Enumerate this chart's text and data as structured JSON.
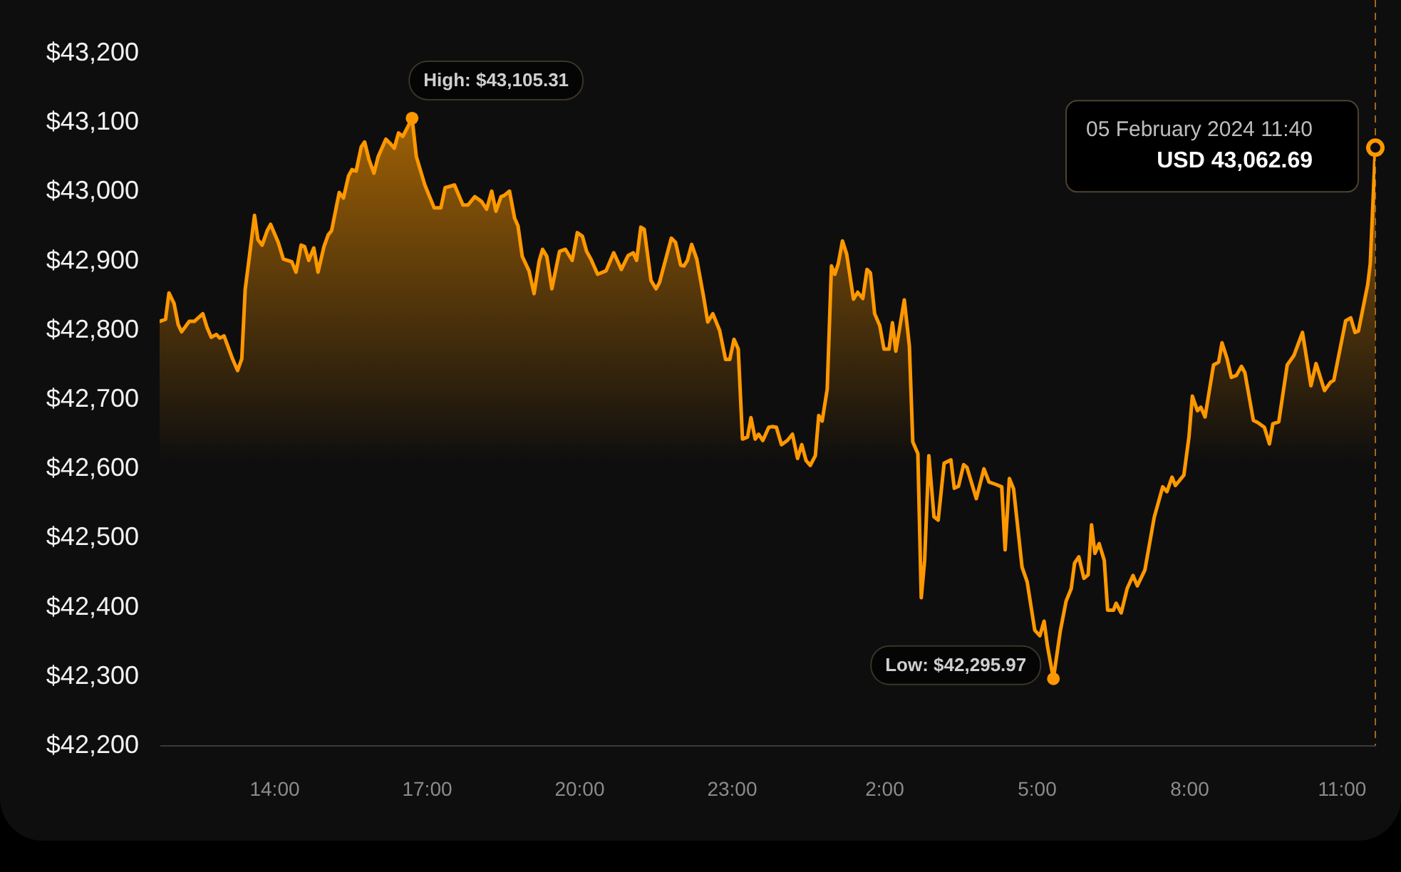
{
  "chart_data": {
    "type": "area",
    "x": [
      "2024-02-04T11:45",
      "2024-02-04T11:52",
      "2024-02-04T11:56",
      "2024-02-04T12:02",
      "2024-02-04T12:07",
      "2024-02-04T12:11",
      "2024-02-04T12:20",
      "2024-02-04T12:26",
      "2024-02-04T12:36",
      "2024-02-04T12:41",
      "2024-02-04T12:46",
      "2024-02-04T12:52",
      "2024-02-04T12:56",
      "2024-02-04T13:01",
      "2024-02-04T13:11",
      "2024-02-04T13:17",
      "2024-02-04T13:22",
      "2024-02-04T13:26",
      "2024-02-04T13:31",
      "2024-02-04T13:37",
      "2024-02-04T13:41",
      "2024-02-04T13:46",
      "2024-02-04T13:52",
      "2024-02-04T13:56",
      "2024-02-04T14:05",
      "2024-02-04T14:11",
      "2024-02-04T14:21",
      "2024-02-04T14:26",
      "2024-02-04T14:32",
      "2024-02-04T14:36",
      "2024-02-04T14:41",
      "2024-02-04T14:47",
      "2024-02-04T14:52",
      "2024-02-04T14:59",
      "2024-02-04T15:04",
      "2024-02-04T15:08",
      "2024-02-04T15:17",
      "2024-02-04T15:22",
      "2024-02-04T15:28",
      "2024-02-04T15:32",
      "2024-02-04T15:37",
      "2024-02-04T15:43",
      "2024-02-04T15:47",
      "2024-02-04T15:52",
      "2024-02-04T15:58",
      "2024-02-04T16:03",
      "2024-02-04T16:12",
      "2024-02-04T16:17",
      "2024-02-04T16:22",
      "2024-02-04T16:27",
      "2024-02-04T16:32",
      "2024-02-04T16:38",
      "2024-02-04T16:43",
      "2024-02-04T16:48",
      "2024-02-04T16:58",
      "2024-02-04T17:09",
      "2024-02-04T17:17",
      "2024-02-04T17:22",
      "2024-02-04T17:28",
      "2024-02-04T17:33",
      "2024-02-04T17:43",
      "2024-02-04T17:49",
      "2024-02-04T17:57",
      "2024-02-04T18:05",
      "2024-02-04T18:11",
      "2024-02-04T18:17",
      "2024-02-04T18:22",
      "2024-02-04T18:28",
      "2024-02-04T18:32",
      "2024-02-04T18:38",
      "2024-02-04T18:44",
      "2024-02-04T18:48",
      "2024-02-04T18:53",
      "2024-02-04T19:01",
      "2024-02-04T19:07",
      "2024-02-04T19:13",
      "2024-02-04T19:17",
      "2024-02-04T19:22",
      "2024-02-04T19:28",
      "2024-02-04T19:37",
      "2024-02-04T19:44",
      "2024-02-04T19:52",
      "2024-02-04T19:58",
      "2024-02-04T20:04",
      "2024-02-04T20:09",
      "2024-02-04T20:14",
      "2024-02-04T20:22",
      "2024-02-04T20:32",
      "2024-02-04T20:41",
      "2024-02-04T20:50",
      "2024-02-04T20:58",
      "2024-02-04T21:04",
      "2024-02-04T21:08",
      "2024-02-04T21:13",
      "2024-02-04T21:17",
      "2024-02-04T21:25",
      "2024-02-04T21:31",
      "2024-02-04T21:35",
      "2024-02-04T21:49",
      "2024-02-04T21:54",
      "2024-02-04T22:00",
      "2024-02-04T22:04",
      "2024-02-04T22:08",
      "2024-02-04T22:13",
      "2024-02-04T22:19",
      "2024-02-04T22:27",
      "2024-02-04T22:32",
      "2024-02-04T22:38",
      "2024-02-04T22:46",
      "2024-02-04T22:53",
      "2024-02-04T22:58",
      "2024-02-04T23:03",
      "2024-02-04T23:08",
      "2024-02-04T23:13",
      "2024-02-04T23:19",
      "2024-02-04T23:23",
      "2024-02-04T23:28",
      "2024-02-04T23:32",
      "2024-02-04T23:37",
      "2024-02-04T23:44",
      "2024-02-04T23:48",
      "2024-02-04T23:53",
      "2024-02-04T23:59",
      "2024-02-05T00:06",
      "2024-02-05T00:12",
      "2024-02-05T00:18",
      "2024-02-05T00:23",
      "2024-02-05T00:28",
      "2024-02-05T00:33",
      "2024-02-05T00:39",
      "2024-02-05T00:43",
      "2024-02-05T00:47",
      "2024-02-05T00:53",
      "2024-02-05T00:58",
      "2024-02-05T01:02",
      "2024-02-05T01:06",
      "2024-02-05T01:11",
      "2024-02-05T01:16",
      "2024-02-05T01:24",
      "2024-02-05T01:29",
      "2024-02-05T01:35",
      "2024-02-05T01:40",
      "2024-02-05T01:44",
      "2024-02-05T01:49",
      "2024-02-05T01:55",
      "2024-02-05T02:00",
      "2024-02-05T02:06",
      "2024-02-05T02:10",
      "2024-02-05T02:14",
      "2024-02-05T02:24",
      "2024-02-05T02:30",
      "2024-02-05T02:34",
      "2024-02-05T02:40",
      "2024-02-05T02:44",
      "2024-02-05T02:48",
      "2024-02-05T02:53",
      "2024-02-05T02:59",
      "2024-02-05T03:04",
      "2024-02-05T03:11",
      "2024-02-05T03:19",
      "2024-02-05T03:23",
      "2024-02-05T03:28",
      "2024-02-05T03:34",
      "2024-02-05T03:38",
      "2024-02-05T03:49",
      "2024-02-05T03:58",
      "2024-02-05T04:04",
      "2024-02-05T04:11",
      "2024-02-05T04:19",
      "2024-02-05T04:23",
      "2024-02-05T04:28",
      "2024-02-05T04:33",
      "2024-02-05T04:43",
      "2024-02-05T04:49",
      "2024-02-05T04:58",
      "2024-02-05T05:04",
      "2024-02-05T05:09",
      "2024-02-05T05:13",
      "2024-02-05T05:20",
      "2024-02-05T05:28",
      "2024-02-05T05:35",
      "2024-02-05T05:41",
      "2024-02-05T05:45",
      "2024-02-05T05:50",
      "2024-02-05T05:56",
      "2024-02-05T06:01",
      "2024-02-05T06:05",
      "2024-02-05T06:09",
      "2024-02-05T06:14",
      "2024-02-05T06:20",
      "2024-02-05T06:24",
      "2024-02-05T06:31",
      "2024-02-05T06:34",
      "2024-02-05T06:40",
      "2024-02-05T06:47",
      "2024-02-05T06:54",
      "2024-02-05T06:59",
      "2024-02-05T07:08",
      "2024-02-05T07:19",
      "2024-02-05T07:29",
      "2024-02-05T07:34",
      "2024-02-05T07:40",
      "2024-02-05T07:44",
      "2024-02-05T07:54",
      "2024-02-05T08:00",
      "2024-02-05T08:04",
      "2024-02-05T08:10",
      "2024-02-05T08:14",
      "2024-02-05T08:19",
      "2024-02-05T08:29",
      "2024-02-05T08:35",
      "2024-02-05T08:39",
      "2024-02-05T08:45",
      "2024-02-05T08:50",
      "2024-02-05T08:56",
      "2024-02-05T09:02",
      "2024-02-05T09:06",
      "2024-02-05T09:16",
      "2024-02-05T09:21",
      "2024-02-05T09:29",
      "2024-02-05T09:35",
      "2024-02-05T09:39",
      "2024-02-05T09:46",
      "2024-02-05T09:56",
      "2024-02-05T10:04",
      "2024-02-05T10:14",
      "2024-02-05T10:24",
      "2024-02-05T10:30",
      "2024-02-05T10:40",
      "2024-02-05T10:47",
      "2024-02-05T10:51",
      "2024-02-05T11:05",
      "2024-02-05T11:11",
      "2024-02-05T11:16",
      "2024-02-05T11:20",
      "2024-02-05T11:31",
      "2024-02-05T11:34",
      "2024-02-05T11:40"
    ],
    "series": [
      {
        "color": "#ff9800",
        "values": [
          42812,
          42815,
          42853,
          42838,
          42807,
          42797,
          42812,
          42812,
          42823,
          42803,
          42789,
          42793,
          42788,
          42791,
          42758,
          42741,
          42758,
          42858,
          42906,
          42965,
          42930,
          42922,
          42943,
          42952,
          42926,
          42902,
          42898,
          42883,
          42922,
          42920,
          42900,
          42918,
          42883,
          42920,
          42937,
          42943,
          42998,
          42990,
          43022,
          43031,
          43029,
          43064,
          43071,
          43046,
          43026,
          43050,
          43075,
          43069,
          43062,
          43084,
          43079,
          43093,
          43105.31,
          43050,
          43009,
          42976,
          42976,
          43005,
          43007,
          43009,
          42980,
          42980,
          42992,
          42985,
          42974,
          43000,
          42971,
          42992,
          42994,
          43000,
          42961,
          42950,
          42906,
          42885,
          42852,
          42899,
          42916,
          42906,
          42859,
          42913,
          42916,
          42900,
          42940,
          42935,
          42913,
          42902,
          42880,
          42885,
          42911,
          42887,
          42907,
          42911,
          42900,
          42948,
          42945,
          42871,
          42859,
          42868,
          42932,
          42926,
          42893,
          42892,
          42900,
          42923,
          42902,
          42848,
          42811,
          42823,
          42799,
          42757,
          42757,
          42786,
          42772,
          42642,
          42645,
          42673,
          42642,
          42649,
          42640,
          42659,
          42660,
          42659,
          42634,
          42640,
          42649,
          42614,
          42634,
          42611,
          42604,
          42618,
          42676,
          42668,
          42714,
          42892,
          42880,
          42895,
          42928,
          42909,
          42844,
          42854,
          42845,
          42887,
          42882,
          42823,
          42806,
          42772,
          42772,
          42810,
          42769,
          42843,
          42776,
          42638,
          42621,
          42413,
          42467,
          42618,
          42530,
          42525,
          42607,
          42612,
          42571,
          42574,
          42605,
          42601,
          42556,
          42599,
          42580,
          42577,
          42573,
          42482,
          42585,
          42570,
          42457,
          42436,
          42366,
          42358,
          42379,
          42343,
          42295.97,
          42364,
          42408,
          42426,
          42463,
          42472,
          42441,
          42446,
          42518,
          42477,
          42491,
          42467,
          42395,
          42395,
          42405,
          42391,
          42426,
          42445,
          42430,
          42453,
          42529,
          42573,
          42566,
          42587,
          42575,
          42590,
          42645,
          42704,
          42683,
          42688,
          42674,
          42749,
          42753,
          42781,
          42758,
          42731,
          42734,
          42747,
          42738,
          42669,
          42666,
          42659,
          42635,
          42664,
          42667,
          42749,
          42763,
          42796,
          42719,
          42751,
          42712,
          42724,
          42727,
          42813,
          42817,
          42796,
          42798,
          42865,
          42895,
          43062.69
        ]
      }
    ],
    "xlim": [
      "2024-02-04T11:45",
      "2024-02-05T11:40"
    ],
    "xticks": [
      {
        "value": "2024-02-04T14:00",
        "label": "14:00"
      },
      {
        "value": "2024-02-04T17:00",
        "label": "17:00"
      },
      {
        "value": "2024-02-04T20:00",
        "label": "20:00"
      },
      {
        "value": "2024-02-04T23:00",
        "label": "23:00"
      },
      {
        "value": "2024-02-05T02:00",
        "label": "2:00"
      },
      {
        "value": "2024-02-05T05:00",
        "label": "5:00"
      },
      {
        "value": "2024-02-05T08:00",
        "label": "8:00"
      },
      {
        "value": "2024-02-05T11:00",
        "label": "11:00"
      }
    ],
    "ylim": [
      42200,
      43276
    ],
    "yticks": [
      {
        "value": 42200,
        "label": "$42,200"
      },
      {
        "value": 42300,
        "label": "$42,300"
      },
      {
        "value": 42400,
        "label": "$42,400"
      },
      {
        "value": 42500,
        "label": "$42,500"
      },
      {
        "value": 42600,
        "label": "$42,600"
      },
      {
        "value": 42700,
        "label": "$42,700"
      },
      {
        "value": 42800,
        "label": "$42,800"
      },
      {
        "value": 42900,
        "label": "$42,900"
      },
      {
        "value": 43000,
        "label": "$43,000"
      },
      {
        "value": 43100,
        "label": "$43,100"
      },
      {
        "value": 43200,
        "label": "$43,200"
      }
    ],
    "ref_lines": [
      {
        "axis": "x",
        "value": "2024-02-05T11:40",
        "line_style": "dashed",
        "color": "#a0671f"
      }
    ],
    "annotations": [
      {
        "text": "High: $43,105.31",
        "x": "2024-02-04T16:43",
        "y": 43105.31
      },
      {
        "text": "Low: $42,295.97",
        "x": "2024-02-05T05:20",
        "y": 42295.97
      },
      {
        "text": "05 February 2024 11:40",
        "x": "2024-02-05T11:40",
        "y": 43062.69
      },
      {
        "text": "USD 43,062.69",
        "x": "2024-02-05T11:40",
        "y": 43062.69
      }
    ]
  }
}
